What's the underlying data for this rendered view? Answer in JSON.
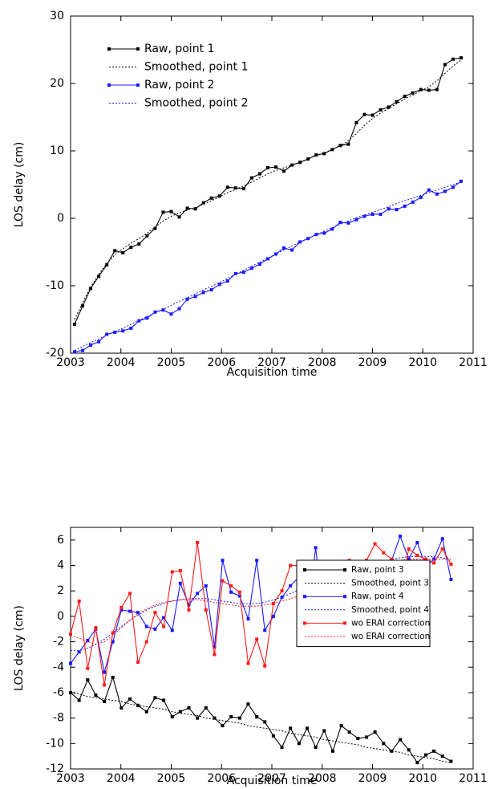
{
  "chart_data": [
    {
      "type": "line",
      "xlabel": "Acquisition time",
      "ylabel": "LOS delay (cm)",
      "xlim": [
        2003,
        2011
      ],
      "ylim": [
        -20,
        30
      ],
      "xticks": [
        2003,
        2004,
        2005,
        2006,
        2007,
        2008,
        2009,
        2010,
        2011
      ],
      "yticks": [
        -20,
        -10,
        0,
        10,
        20,
        30
      ],
      "legend": "upper left",
      "x": [
        2003.08,
        2003.24,
        2003.4,
        2003.56,
        2003.72,
        2003.88,
        2004.04,
        2004.2,
        2004.36,
        2004.52,
        2004.68,
        2004.84,
        2005.0,
        2005.16,
        2005.32,
        2005.48,
        2005.64,
        2005.8,
        2005.96,
        2006.12,
        2006.28,
        2006.44,
        2006.6,
        2006.76,
        2006.92,
        2007.08,
        2007.24,
        2007.4,
        2007.56,
        2007.72,
        2007.88,
        2008.04,
        2008.2,
        2008.36,
        2008.52,
        2008.68,
        2008.84,
        2009.0,
        2009.16,
        2009.32,
        2009.48,
        2009.64,
        2009.8,
        2009.96,
        2010.12,
        2010.28,
        2010.44,
        2010.6,
        2010.76
      ],
      "series": [
        {
          "name": "Raw, point 1",
          "color": "#000000",
          "linestyle": "solid",
          "markers": true,
          "values": [
            -15.7,
            -13,
            -10.4,
            -8.6,
            -6.9,
            -4.8,
            -5.1,
            -4.3,
            -3.8,
            -2.6,
            -1.5,
            0.9,
            1.0,
            0.2,
            1.5,
            1.4,
            2.3,
            3.0,
            3.3,
            4.6,
            4.5,
            4.4,
            6.0,
            6.6,
            7.5,
            7.6,
            7.0,
            7.9,
            8.3,
            8.8,
            9.4,
            9.6,
            10.2,
            10.8,
            11.0,
            14.2,
            15.4,
            15.3,
            16.1,
            16.5,
            17.3,
            18.1,
            18.6,
            19.1,
            19.0,
            19.1,
            22.8,
            23.6,
            23.8
          ]
        },
        {
          "name": "Smoothed, point 1",
          "color": "#000000",
          "linestyle": "dotted",
          "markers": false,
          "values": [
            -15,
            -12.5,
            -10.2,
            -8.3,
            -6.7,
            -5.4,
            -4.5,
            -3.7,
            -3.0,
            -2.2,
            -1.3,
            -0.4,
            0.3,
            0.8,
            1.2,
            1.6,
            2.1,
            2.6,
            3.2,
            3.8,
            4.3,
            4.8,
            5.4,
            6.0,
            6.6,
            7.1,
            7.5,
            7.9,
            8.3,
            8.8,
            9.3,
            9.7,
            10.2,
            10.8,
            11.5,
            12.6,
            13.8,
            14.8,
            15.6,
            16.3,
            17.0,
            17.7,
            18.3,
            18.9,
            19.5,
            20.4,
            21.5,
            22.6,
            23.5
          ]
        },
        {
          "name": "Raw, point 2",
          "color": "#1a1aff",
          "linestyle": "solid",
          "markers": true,
          "values": [
            -19.8,
            -19.6,
            -18.8,
            -18.3,
            -17.2,
            -16.9,
            -16.7,
            -16.3,
            -15.2,
            -14.8,
            -13.9,
            -13.6,
            -14.2,
            -13.4,
            -12.0,
            -11.6,
            -11.0,
            -10.6,
            -9.8,
            -9.3,
            -8.2,
            -8.0,
            -7.4,
            -6.8,
            -6.0,
            -5.3,
            -4.4,
            -4.7,
            -3.5,
            -3.0,
            -2.4,
            -2.2,
            -1.6,
            -0.6,
            -0.7,
            -0.2,
            0.3,
            0.6,
            0.6,
            1.4,
            1.3,
            1.8,
            2.4,
            3.1,
            4.2,
            3.6,
            4.0,
            4.6,
            5.5
          ]
        },
        {
          "name": "Smoothed, point 2",
          "color": "#1a1aff",
          "linestyle": "dotted",
          "markers": false,
          "values": [
            -19.6,
            -19.0,
            -18.4,
            -17.9,
            -17.3,
            -16.8,
            -16.3,
            -15.7,
            -15.1,
            -14.6,
            -14.0,
            -13.5,
            -12.9,
            -12.3,
            -11.8,
            -11.2,
            -10.6,
            -10.1,
            -9.5,
            -8.9,
            -8.3,
            -7.7,
            -7.1,
            -6.5,
            -5.9,
            -5.3,
            -4.7,
            -4.1,
            -3.5,
            -3.0,
            -2.4,
            -1.9,
            -1.4,
            -0.9,
            -0.4,
            0.1,
            0.5,
            0.9,
            1.3,
            1.7,
            2.2,
            2.6,
            3.0,
            3.4,
            3.8,
            4.2,
            4.6,
            5.0,
            5.4
          ]
        }
      ]
    },
    {
      "type": "line",
      "xlabel": "Acquisition time",
      "ylabel": "LOS delay (cm)",
      "xlim": [
        2003,
        2011
      ],
      "ylim": [
        -12,
        7
      ],
      "xticks": [
        2003,
        2004,
        2005,
        2006,
        2007,
        2008,
        2009,
        2010,
        2011
      ],
      "yticks": [
        -12,
        -10,
        -8,
        -6,
        -4,
        -2,
        0,
        2,
        4,
        6
      ],
      "legend": "center right",
      "x": [
        2003.0,
        2003.17,
        2003.34,
        2003.5,
        2003.67,
        2003.84,
        2004.01,
        2004.18,
        2004.34,
        2004.51,
        2004.68,
        2004.85,
        2005.02,
        2005.18,
        2005.35,
        2005.52,
        2005.69,
        2005.86,
        2006.02,
        2006.19,
        2006.36,
        2006.53,
        2006.7,
        2006.86,
        2007.03,
        2007.2,
        2007.37,
        2007.54,
        2007.7,
        2007.87,
        2008.04,
        2008.21,
        2008.38,
        2008.54,
        2008.71,
        2008.88,
        2009.05,
        2009.22,
        2009.38,
        2009.55,
        2009.72,
        2009.89,
        2010.06,
        2010.22,
        2010.39,
        2010.56
      ],
      "series": [
        {
          "name": "Raw, point 3",
          "color": "#000000",
          "linestyle": "solid",
          "markers": true,
          "values": [
            -6.0,
            -6.6,
            -5.0,
            -6.2,
            -6.7,
            -4.8,
            -7.2,
            -6.5,
            -7.0,
            -7.5,
            -6.4,
            -6.6,
            -7.9,
            -7.5,
            -7.2,
            -8.0,
            -7.2,
            -8.0,
            -8.6,
            -7.9,
            -8.0,
            -6.9,
            -7.9,
            -8.3,
            -9.4,
            -10.3,
            -8.8,
            -10.0,
            -8.8,
            -10.3,
            -9.0,
            -10.6,
            -8.6,
            -9.1,
            -9.6,
            -9.5,
            -9.1,
            -10.0,
            -10.6,
            -9.7,
            -10.5,
            -11.5,
            -10.9,
            -10.6,
            -11.0,
            -11.4
          ]
        },
        {
          "name": "Smoothed, point 3",
          "color": "#000000",
          "linestyle": "dotted",
          "markers": false,
          "values": [
            -6.0,
            -6.1,
            -6.3,
            -6.4,
            -6.5,
            -6.6,
            -6.7,
            -6.9,
            -7.0,
            -7.1,
            -7.2,
            -7.3,
            -7.5,
            -7.6,
            -7.7,
            -7.8,
            -8.0,
            -8.1,
            -8.2,
            -8.3,
            -8.4,
            -8.6,
            -8.7,
            -8.8,
            -8.9,
            -9.0,
            -9.2,
            -9.3,
            -9.4,
            -9.5,
            -9.7,
            -9.8,
            -9.9,
            -10.0,
            -10.1,
            -10.3,
            -10.4,
            -10.5,
            -10.6,
            -10.7,
            -10.9,
            -11.0,
            -11.1,
            -11.2,
            -11.4,
            -11.5
          ]
        },
        {
          "name": "Raw, point 4",
          "color": "#1a1aff",
          "linestyle": "solid",
          "markers": true,
          "values": [
            -3.7,
            -2.8,
            -1.9,
            -1.0,
            -4.4,
            -2.0,
            0.5,
            0.4,
            0.3,
            -0.8,
            -1.0,
            -0.1,
            -1.1,
            2.6,
            0.9,
            1.8,
            2.4,
            -2.4,
            4.4,
            1.9,
            1.6,
            -0.2,
            4.4,
            -1.1,
            0.0,
            1.5,
            2.4,
            3.1,
            -0.5,
            5.4,
            -0.4,
            2.8,
            3.0,
            2.8,
            2.6,
            0.6,
            3.8,
            3.6,
            4.4,
            6.3,
            4.5,
            5.8,
            3.9,
            4.5,
            6.1,
            2.9
          ]
        },
        {
          "name": "Smoothed, point 4",
          "color": "#1a1aff",
          "linestyle": "dotted",
          "markers": false,
          "values": [
            -2.7,
            -2.7,
            -2.5,
            -2.2,
            -1.8,
            -1.3,
            -0.8,
            -0.3,
            0.1,
            0.5,
            0.8,
            1.0,
            1.2,
            1.3,
            1.4,
            1.4,
            1.4,
            1.3,
            1.2,
            1.1,
            1.0,
            1.0,
            1.0,
            1.1,
            1.3,
            1.5,
            1.8,
            2.1,
            2.4,
            2.7,
            2.9,
            3.1,
            3.3,
            3.5,
            3.7,
            3.9,
            4.1,
            4.3,
            4.5,
            4.6,
            4.7,
            4.7,
            4.7,
            4.7,
            4.6,
            4.5
          ]
        },
        {
          "name": "wo ERAI correction",
          "color": "#ff1a1a",
          "linestyle": "solid",
          "markers": true,
          "values": [
            -1.4,
            1.2,
            -4.1,
            -0.9,
            -5.4,
            -1.3,
            0.7,
            1.8,
            -3.6,
            -2.0,
            0.3,
            -0.8,
            3.5,
            3.6,
            0.5,
            5.8,
            0.5,
            -3.0,
            2.8,
            2.4,
            1.9,
            -3.7,
            -1.8,
            -3.9,
            1.0,
            2.0,
            4.0,
            4.0,
            -1.7,
            2.3,
            2.3,
            2.4,
            -1.5,
            4.4,
            2.5,
            4.4,
            5.7,
            5.0,
            4.5,
            1.8,
            5.3,
            4.8,
            4.5,
            4.2,
            5.3,
            4.1
          ]
        },
        {
          "name": "wo ERAI correction",
          "color": "#ff1a1a",
          "linestyle": "dotted",
          "markers": false,
          "values": [
            -1.5,
            -1.7,
            -2.0,
            -2.2,
            -2.0,
            -1.5,
            -0.9,
            -0.3,
            0.2,
            0.6,
            0.9,
            1.1,
            1.2,
            1.3,
            1.3,
            1.3,
            1.2,
            1.1,
            1.0,
            0.9,
            0.8,
            0.8,
            0.8,
            0.9,
            1.0,
            1.2,
            1.4,
            1.6,
            1.8,
            2.0,
            2.2,
            2.4,
            2.7,
            3.0,
            3.3,
            3.6,
            3.9,
            4.1,
            4.3,
            4.4,
            4.5,
            4.5,
            4.5,
            4.5,
            4.5,
            4.4
          ]
        }
      ]
    }
  ]
}
